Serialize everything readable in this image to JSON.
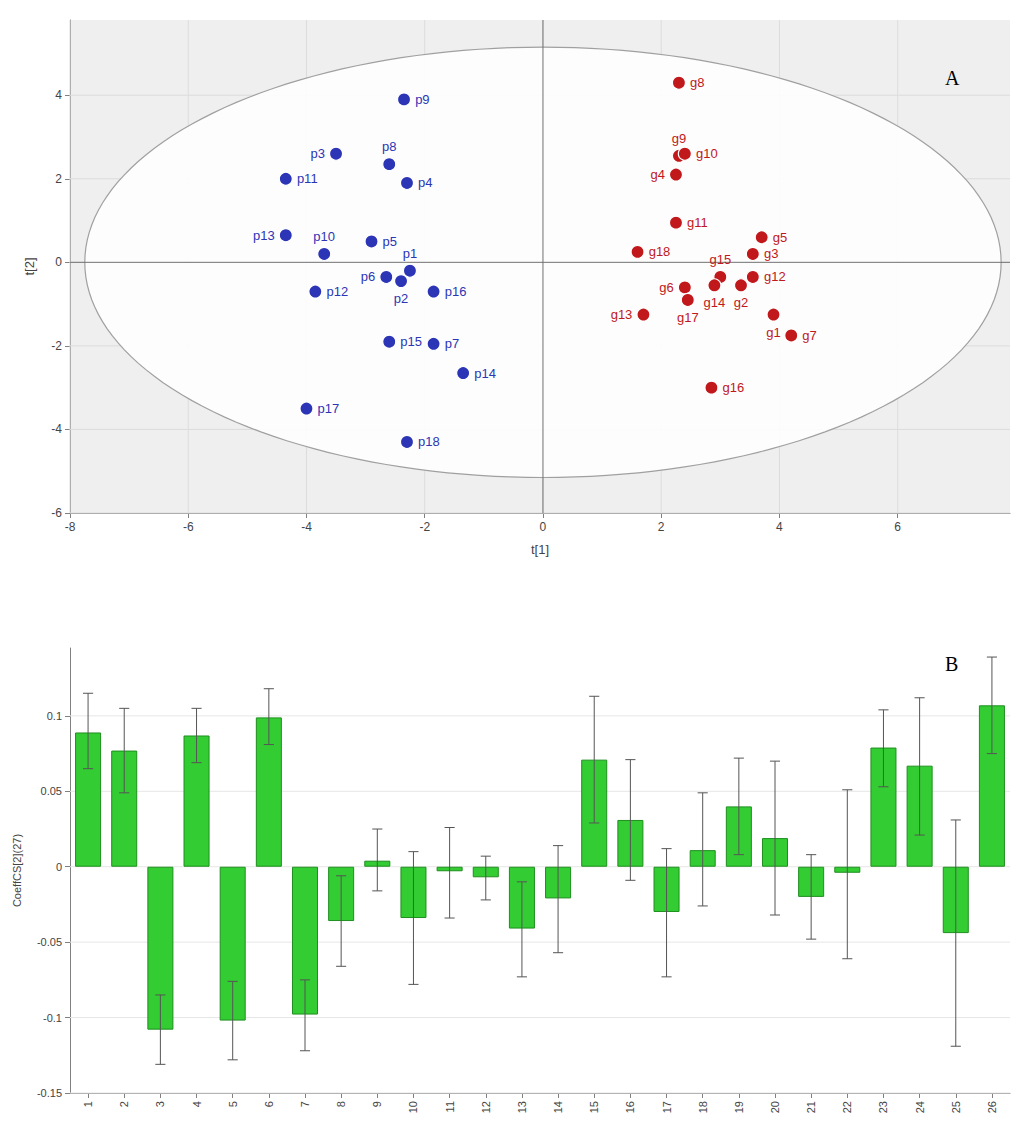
{
  "chart_data": [
    {
      "type": "scatter",
      "panel_label": "A",
      "x_label": "t[1]",
      "y_label": "t[2]",
      "xlim": [
        -8,
        7.9
      ],
      "xticks": [
        -8,
        -6,
        -4,
        -2,
        0,
        2,
        4,
        6
      ],
      "ylim": [
        -6,
        5.8
      ],
      "yticks": [
        -6,
        -4,
        -2,
        0,
        2,
        4
      ],
      "grid": true,
      "ellipse": {
        "x_radius": 7.75,
        "y_radius": 5.15
      },
      "series": [
        {
          "color": "#2b35b5",
          "labels": [
            "p9",
            "p3",
            "p8",
            "p11",
            "p4",
            "p13",
            "p10",
            "p5",
            "p1",
            "p6",
            "p2",
            "p12",
            "p16",
            "p15",
            "p7",
            "p14",
            "p17",
            "p18"
          ],
          "x": [
            -2.35,
            -3.5,
            -2.6,
            -4.35,
            -2.3,
            -4.35,
            -3.7,
            -2.9,
            -2.25,
            -2.65,
            -2.4,
            -3.85,
            -1.85,
            -2.6,
            -1.85,
            -1.35,
            -4.0,
            -2.3
          ],
          "y": [
            3.9,
            2.6,
            2.35,
            2.0,
            1.9,
            0.65,
            0.2,
            0.5,
            -0.2,
            -0.35,
            -0.45,
            -0.7,
            -0.7,
            -1.9,
            -1.95,
            -2.65,
            -3.5,
            -4.3
          ]
        },
        {
          "color": "#c0181b",
          "labels": [
            "g8",
            "g9",
            "g10",
            "g4",
            "g11",
            "g18",
            "g5",
            "g3",
            "g15",
            "g12",
            "g6",
            "g17",
            "g14",
            "g2",
            "g13",
            "g1",
            "g7",
            "g16"
          ],
          "x": [
            2.3,
            2.3,
            2.4,
            2.25,
            2.25,
            1.6,
            3.7,
            3.55,
            3.0,
            3.55,
            2.4,
            2.45,
            2.9,
            3.35,
            1.7,
            3.9,
            4.2,
            2.85
          ],
          "y": [
            4.3,
            2.55,
            2.6,
            2.1,
            0.95,
            0.25,
            0.6,
            0.2,
            -0.35,
            -0.35,
            -0.6,
            -0.9,
            -0.55,
            -0.55,
            -1.25,
            -1.25,
            -1.75,
            -3.0
          ]
        }
      ]
    },
    {
      "type": "bar",
      "panel_label": "B",
      "y_label": "CoeffCS[2](27)",
      "categories": [
        "1",
        "2",
        "3",
        "4",
        "5",
        "6",
        "7",
        "8",
        "9",
        "10",
        "11",
        "12",
        "13",
        "14",
        "15",
        "16",
        "17",
        "18",
        "19",
        "20",
        "21",
        "22",
        "23",
        "24",
        "25",
        "26"
      ],
      "values": [
        0.089,
        0.077,
        -0.108,
        0.087,
        -0.102,
        0.099,
        -0.098,
        -0.036,
        0.004,
        -0.034,
        -0.003,
        -0.007,
        -0.041,
        -0.021,
        0.071,
        0.031,
        -0.03,
        0.011,
        0.04,
        0.019,
        -0.02,
        -0.004,
        0.079,
        0.067,
        -0.044,
        0.107
      ],
      "error_low": [
        0.065,
        0.049,
        -0.131,
        0.069,
        -0.128,
        0.081,
        -0.122,
        -0.066,
        -0.016,
        -0.078,
        -0.034,
        -0.022,
        -0.073,
        -0.057,
        0.029,
        -0.009,
        -0.073,
        -0.026,
        0.008,
        -0.032,
        -0.048,
        -0.061,
        0.053,
        0.021,
        -0.119,
        0.075
      ],
      "error_high": [
        0.115,
        0.105,
        -0.085,
        0.105,
        -0.076,
        0.118,
        -0.075,
        -0.006,
        0.025,
        0.01,
        0.026,
        0.007,
        -0.01,
        0.014,
        0.113,
        0.071,
        0.012,
        0.049,
        0.072,
        0.07,
        0.008,
        0.051,
        0.104,
        0.112,
        0.031,
        0.139
      ],
      "color": "#33cc33",
      "ylim": [
        -0.15,
        0.145
      ],
      "yticks": [
        -0.15,
        -0.1,
        -0.05,
        0,
        0.05,
        0.1
      ],
      "grid": true
    }
  ]
}
